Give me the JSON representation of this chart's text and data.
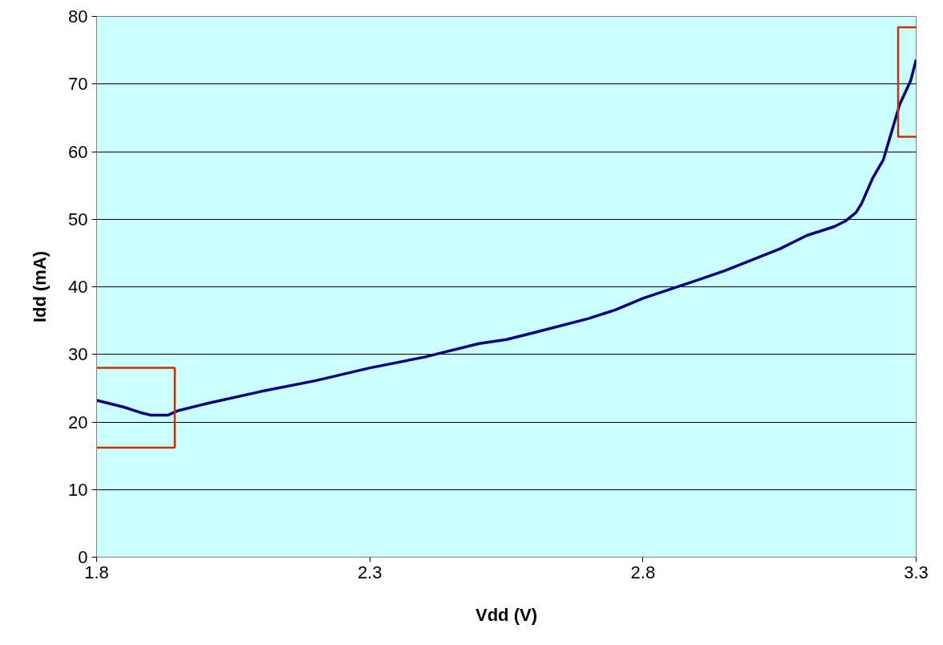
{
  "chart_data": {
    "type": "line",
    "xlabel": "Vdd (V)",
    "ylabel": "Idd (mA)",
    "x": [
      1.8,
      1.85,
      1.88,
      1.9,
      1.93,
      1.95,
      2.0,
      2.1,
      2.2,
      2.3,
      2.4,
      2.5,
      2.55,
      2.6,
      2.7,
      2.75,
      2.8,
      2.9,
      2.95,
      3.0,
      3.05,
      3.1,
      3.15,
      3.17,
      3.19,
      3.2,
      3.22,
      3.24,
      3.27,
      3.29,
      3.3
    ],
    "series": [
      {
        "color": "#000080",
        "values": [
          23.2,
          22.2,
          21.4,
          21.0,
          21.0,
          21.7,
          22.7,
          24.5,
          26.1,
          28.0,
          29.6,
          31.6,
          32.2,
          33.2,
          35.3,
          36.6,
          38.3,
          41.0,
          42.4,
          44.0,
          45.6,
          47.6,
          48.9,
          49.7,
          51.0,
          52.3,
          56.0,
          58.8,
          67.0,
          70.5,
          73.6
        ]
      }
    ],
    "xlim": [
      1.8,
      3.3
    ],
    "xticks": [
      1.8,
      2.3,
      2.8,
      3.3
    ],
    "ylim": [
      0,
      80
    ],
    "yticks": [
      0,
      10,
      20,
      30,
      40,
      50,
      60,
      70,
      80
    ],
    "grid": "y",
    "marker": "none",
    "line_style": "solid"
  }
}
